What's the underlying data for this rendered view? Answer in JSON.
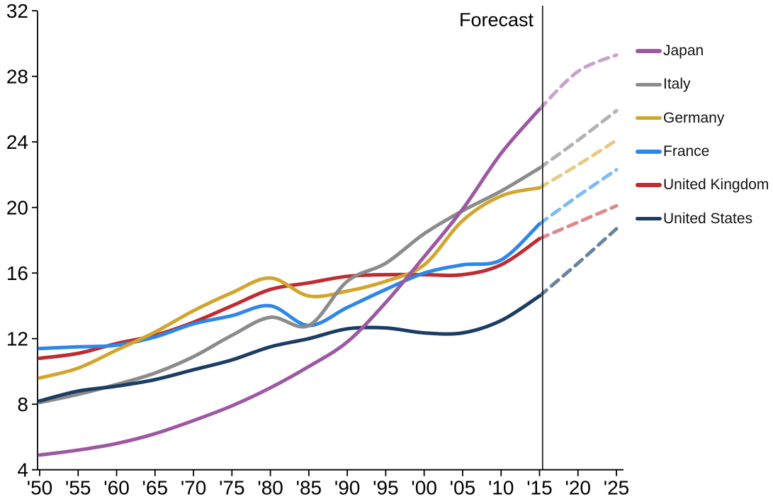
{
  "chart_data": {
    "type": "line",
    "title": "",
    "xlabel": "",
    "ylabel": "",
    "grid": false,
    "legend_position": "right",
    "x_axis": {
      "range": [
        1950,
        2025
      ],
      "ticks": [
        1950,
        1955,
        1960,
        1965,
        1970,
        1975,
        1980,
        1985,
        1990,
        1995,
        2000,
        2005,
        2010,
        2015,
        2020,
        2025
      ],
      "tick_labels": [
        "'50",
        "'55",
        "'60",
        "'65",
        "'70",
        "'75",
        "'80",
        "'85",
        "'90",
        "'95",
        "'00",
        "'05",
        "'10",
        "'15",
        "'20",
        "'25"
      ]
    },
    "y_axis": {
      "range": [
        4,
        32
      ],
      "ticks": [
        4,
        8,
        12,
        16,
        20,
        24,
        28,
        32
      ],
      "tick_labels": [
        "4",
        "8",
        "12",
        "16",
        "20",
        "24",
        "28",
        "32"
      ]
    },
    "x": [
      1950,
      1955,
      1960,
      1965,
      1970,
      1975,
      1980,
      1985,
      1990,
      1995,
      2000,
      2005,
      2010,
      2015
    ],
    "forecast_x": [
      2015,
      2020,
      2025
    ],
    "series": [
      {
        "name": "Japan",
        "color": "#9D58A3",
        "forecast_color": "#C9A3CF",
        "values": [
          4.9,
          5.2,
          5.6,
          6.2,
          7.0,
          7.9,
          9.0,
          10.3,
          11.8,
          14.2,
          17.0,
          19.9,
          23.3,
          26.0
        ],
        "forecast_values": [
          26.0,
          28.3,
          29.3
        ]
      },
      {
        "name": "Italy",
        "color": "#8B8B8B",
        "forecast_color": "#B3B3B3",
        "values": [
          8.1,
          8.6,
          9.2,
          9.9,
          10.9,
          12.2,
          13.3,
          12.8,
          15.5,
          16.6,
          18.4,
          19.8,
          21.0,
          22.4
        ],
        "forecast_values": [
          22.4,
          24.1,
          25.9
        ]
      },
      {
        "name": "Germany",
        "color": "#D2A62D",
        "forecast_color": "#E4CB86",
        "values": [
          9.6,
          10.2,
          11.3,
          12.4,
          13.7,
          14.8,
          15.7,
          14.6,
          14.9,
          15.5,
          16.5,
          19.2,
          20.7,
          21.2
        ],
        "forecast_values": [
          21.2,
          22.6,
          24.1
        ]
      },
      {
        "name": "France",
        "color": "#2D87E9",
        "forecast_color": "#80BAF3",
        "values": [
          11.4,
          11.5,
          11.6,
          12.1,
          12.9,
          13.4,
          14.0,
          12.8,
          13.9,
          15.0,
          16.0,
          16.5,
          16.8,
          19.0
        ],
        "forecast_values": [
          19.0,
          20.7,
          22.3
        ]
      },
      {
        "name": "United Kingdom",
        "color": "#BF2B31",
        "forecast_color": "#E0898D",
        "values": [
          10.8,
          11.1,
          11.7,
          12.2,
          13.0,
          14.0,
          15.0,
          15.4,
          15.8,
          15.9,
          15.9,
          15.9,
          16.5,
          18.1
        ],
        "forecast_values": [
          18.1,
          19.1,
          20.1
        ]
      },
      {
        "name": "United States",
        "color": "#1B3D64",
        "forecast_color": "#68839F",
        "values": [
          8.2,
          8.8,
          9.1,
          9.5,
          10.1,
          10.7,
          11.5,
          12.0,
          12.6,
          12.65,
          12.35,
          12.35,
          13.1,
          14.6
        ],
        "forecast_values": [
          14.6,
          16.6,
          18.7
        ]
      }
    ],
    "annotations": {
      "forecast_label": "Forecast",
      "forecast_line_x": 2015.4
    }
  },
  "colors": {
    "background": "#FFFFFF",
    "axis": "#000000",
    "text": "#000000"
  }
}
